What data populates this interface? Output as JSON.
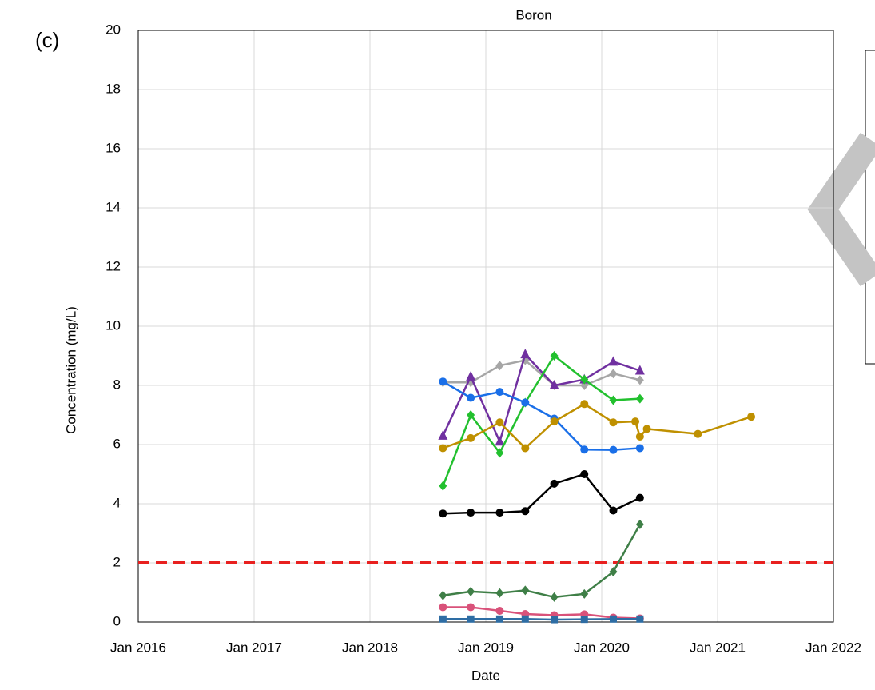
{
  "chart_data": {
    "type": "line",
    "title": "Boron",
    "panel_label": "(c)",
    "x_label": "Date",
    "y_label": "Concentration (mg/L)",
    "xlim": [
      2016,
      2022
    ],
    "xticks": [
      {
        "value": 2016,
        "label": "Jan 2016"
      },
      {
        "value": 2017,
        "label": "Jan 2017"
      },
      {
        "value": 2018,
        "label": "Jan 2018"
      },
      {
        "value": 2019,
        "label": "Jan 2019"
      },
      {
        "value": 2020,
        "label": "Jan 2020"
      },
      {
        "value": 2021,
        "label": "Jan 2021"
      },
      {
        "value": 2022,
        "label": "Jan 2022"
      }
    ],
    "ylim": [
      0,
      20
    ],
    "yticks": [
      0,
      2,
      4,
      6,
      8,
      10,
      12,
      14,
      16,
      18,
      20
    ],
    "grid": true,
    "reference_line": {
      "value": 2,
      "color": "#e8201f"
    },
    "series": [
      {
        "color": "#a6a6a6",
        "marker": "diamond",
        "x": [
          2018.63,
          2018.87,
          2019.12,
          2019.34,
          2019.59,
          2019.85,
          2020.1,
          2020.33
        ],
        "values": [
          8.1,
          8.1,
          8.67,
          8.85,
          8.0,
          8.0,
          8.4,
          8.18
        ]
      },
      {
        "color": "#7030a0",
        "marker": "triangle",
        "x": [
          2018.63,
          2018.87,
          2019.12,
          2019.34,
          2019.59,
          2019.85,
          2020.1,
          2020.33
        ],
        "values": [
          6.3,
          8.3,
          6.1,
          9.05,
          8.0,
          8.2,
          8.8,
          8.5
        ]
      },
      {
        "color": "#22c02e",
        "marker": "diamond",
        "x": [
          2018.63,
          2018.87,
          2019.12,
          2019.34,
          2019.59,
          2019.85,
          2020.1,
          2020.33
        ],
        "values": [
          4.6,
          7.0,
          5.72,
          7.42,
          9.0,
          8.2,
          7.5,
          7.55
        ]
      },
      {
        "color": "#1a6fe8",
        "marker": "circle",
        "x": [
          2018.63,
          2018.87,
          2019.12,
          2019.34,
          2019.59,
          2019.85,
          2020.1,
          2020.33
        ],
        "values": [
          8.13,
          7.58,
          7.78,
          7.42,
          6.88,
          5.83,
          5.82,
          5.88
        ]
      },
      {
        "color": "#bf9000",
        "marker": "circle",
        "x": [
          2018.63,
          2018.87,
          2019.12,
          2019.34,
          2019.59,
          2019.85,
          2020.1,
          2020.29,
          2020.33,
          2020.39,
          2020.83,
          2021.29
        ],
        "values": [
          5.88,
          6.22,
          6.75,
          5.88,
          6.78,
          7.37,
          6.75,
          6.78,
          6.27,
          6.53,
          6.36,
          6.94
        ]
      },
      {
        "color": "#000000",
        "marker": "circle",
        "x": [
          2018.63,
          2018.87,
          2019.12,
          2019.34,
          2019.59,
          2019.85,
          2020.1,
          2020.33
        ],
        "values": [
          3.67,
          3.7,
          3.7,
          3.75,
          4.68,
          5.0,
          3.77,
          4.2
        ]
      },
      {
        "color": "#3f7f47",
        "marker": "diamond",
        "x": [
          2018.63,
          2018.87,
          2019.12,
          2019.34,
          2019.59,
          2019.85,
          2020.1,
          2020.33
        ],
        "values": [
          0.9,
          1.03,
          0.98,
          1.07,
          0.84,
          0.95,
          1.7,
          3.3
        ]
      },
      {
        "color": "#d9527a",
        "marker": "circle",
        "x": [
          2018.63,
          2018.87,
          2019.12,
          2019.34,
          2019.59,
          2019.85,
          2020.1,
          2020.33
        ],
        "values": [
          0.5,
          0.5,
          0.38,
          0.27,
          0.23,
          0.26,
          0.15,
          0.12
        ]
      },
      {
        "color": "#2e6da4",
        "marker": "square",
        "x": [
          2018.63,
          2018.87,
          2019.12,
          2019.34,
          2019.59,
          2019.85,
          2020.1,
          2020.33
        ],
        "values": [
          0.1,
          0.1,
          0.1,
          0.1,
          0.08,
          0.09,
          0.1,
          0.1
        ]
      }
    ]
  }
}
